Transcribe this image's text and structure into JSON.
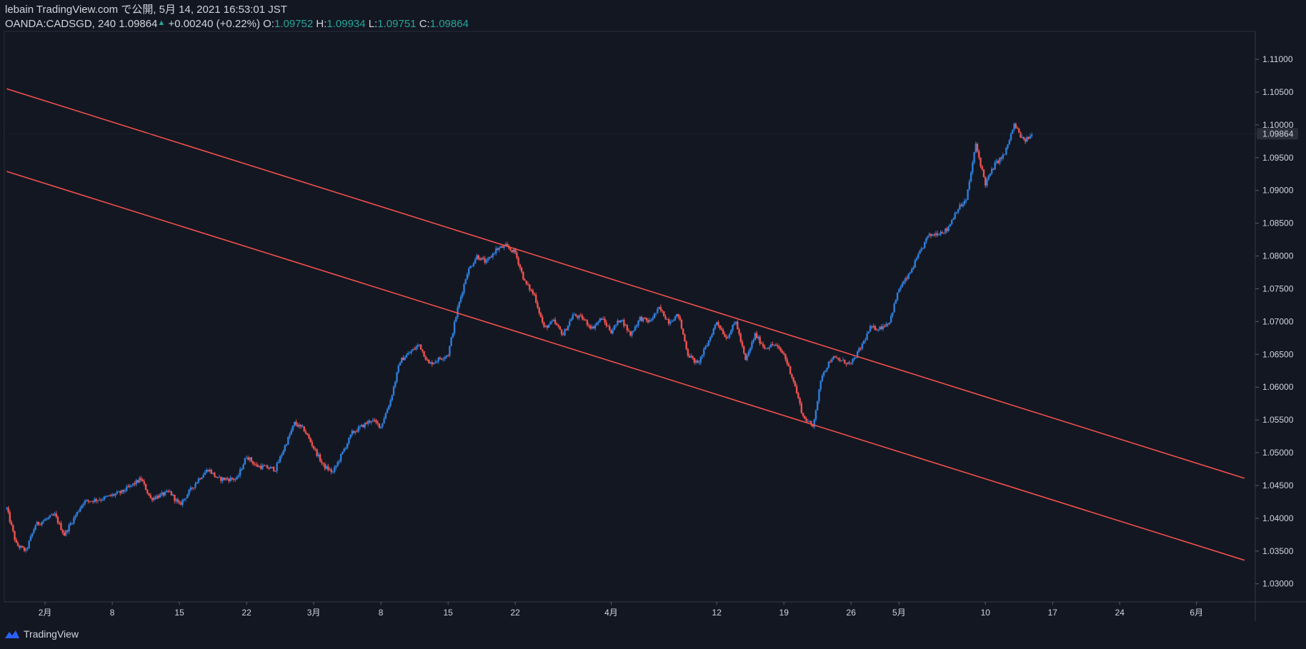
{
  "header": {
    "line1": "lebain TradingView.com で公開, 5月 14, 2021 16:53:01 JST",
    "symbol": "OANDA:CADSGD, 240",
    "last": "1.09864",
    "change": "+0.00240 (+0.22%)",
    "o_label": "O:",
    "o_value": "1.09752",
    "h_label": "H:",
    "h_value": "1.09934",
    "l_label": "L:",
    "l_value": "1.09751",
    "c_label": "C:",
    "c_value": "1.09864"
  },
  "footer": {
    "brand": "TradingView",
    "logo_icon": "tradingview-logo-icon"
  },
  "colors": {
    "background": "#131722",
    "up": "#2f7fdc",
    "down": "#ef5350",
    "trendline": "#f0504a",
    "grid": "#2a2e39",
    "text": "#d1d4dc"
  },
  "chart_data": {
    "type": "candlestick",
    "title": "",
    "ylim": [
      1.02725,
      1.11425
    ],
    "y_ticks": [
      "1.11000",
      "1.10500",
      "1.10000",
      "1.09500",
      "1.09000",
      "1.08500",
      "1.08000",
      "1.07500",
      "1.07000",
      "1.06500",
      "1.06000",
      "1.05500",
      "1.05000",
      "1.04500",
      "1.04000",
      "1.03500",
      "1.03000"
    ],
    "last_price_label": "1.09864",
    "x_ticks": [
      "2月",
      "8",
      "15",
      "22",
      "3月",
      "8",
      "15",
      "22",
      "4月",
      "12",
      "19",
      "26",
      "5月",
      "10",
      "17",
      "24",
      "6月"
    ],
    "price_path": [
      [
        "2021-01-28",
        1.0415
      ],
      [
        "2021-01-29",
        1.036
      ],
      [
        "2021-01-30",
        1.035
      ],
      [
        "2021-01-31",
        1.039
      ],
      [
        "2021-02-02",
        1.0405
      ],
      [
        "2021-02-03",
        1.0375
      ],
      [
        "2021-02-05",
        1.0425
      ],
      [
        "2021-02-07",
        1.043
      ],
      [
        "2021-02-09",
        1.044
      ],
      [
        "2021-02-11",
        1.046
      ],
      [
        "2021-02-12",
        1.043
      ],
      [
        "2021-02-14",
        1.044
      ],
      [
        "2021-02-15",
        1.042
      ],
      [
        "2021-02-17",
        1.046
      ],
      [
        "2021-02-18",
        1.0475
      ],
      [
        "2021-02-19",
        1.046
      ],
      [
        "2021-02-21",
        1.046
      ],
      [
        "2021-02-22",
        1.0495
      ],
      [
        "2021-02-23",
        1.048
      ],
      [
        "2021-02-25",
        1.0475
      ],
      [
        "2021-02-26",
        1.051
      ],
      [
        "2021-02-27",
        1.0545
      ],
      [
        "2021-02-28",
        1.0535
      ],
      [
        "2021-03-02",
        1.048
      ],
      [
        "2021-03-03",
        1.047
      ],
      [
        "2021-03-05",
        1.053
      ],
      [
        "2021-03-07",
        1.055
      ],
      [
        "2021-03-08",
        1.054
      ],
      [
        "2021-03-09",
        1.058
      ],
      [
        "2021-03-10",
        1.064
      ],
      [
        "2021-03-12",
        1.0665
      ],
      [
        "2021-03-13",
        1.0635
      ],
      [
        "2021-03-15",
        1.065
      ],
      [
        "2021-03-16",
        1.072
      ],
      [
        "2021-03-17",
        1.0775
      ],
      [
        "2021-03-18",
        1.08
      ],
      [
        "2021-03-19",
        1.079
      ],
      [
        "2021-03-20",
        1.081
      ],
      [
        "2021-03-21",
        1.0815
      ],
      [
        "2021-03-22",
        1.0805
      ],
      [
        "2021-03-23",
        1.076
      ],
      [
        "2021-03-24",
        1.074
      ],
      [
        "2021-03-25",
        1.069
      ],
      [
        "2021-03-26",
        1.07
      ],
      [
        "2021-03-27",
        1.068
      ],
      [
        "2021-03-28",
        1.071
      ],
      [
        "2021-03-29",
        1.0705
      ],
      [
        "2021-03-30",
        1.069
      ],
      [
        "2021-03-31",
        1.0705
      ],
      [
        "2021-04-01",
        1.0685
      ],
      [
        "2021-04-02",
        1.0705
      ],
      [
        "2021-04-03",
        1.068
      ],
      [
        "2021-04-04",
        1.0705
      ],
      [
        "2021-04-05",
        1.07
      ],
      [
        "2021-04-06",
        1.072
      ],
      [
        "2021-04-07",
        1.07
      ],
      [
        "2021-04-08",
        1.071
      ],
      [
        "2021-04-09",
        1.065
      ],
      [
        "2021-04-10",
        1.0635
      ],
      [
        "2021-04-11",
        1.0665
      ],
      [
        "2021-04-12",
        1.07
      ],
      [
        "2021-04-13",
        1.0675
      ],
      [
        "2021-04-14",
        1.07
      ],
      [
        "2021-04-15",
        1.064
      ],
      [
        "2021-04-16",
        1.068
      ],
      [
        "2021-04-17",
        1.066
      ],
      [
        "2021-04-18",
        1.0665
      ],
      [
        "2021-04-19",
        1.065
      ],
      [
        "2021-04-20",
        1.061
      ],
      [
        "2021-04-21",
        1.0555
      ],
      [
        "2021-04-22",
        1.054
      ],
      [
        "2021-04-23",
        1.062
      ],
      [
        "2021-04-24",
        1.0645
      ],
      [
        "2021-04-25",
        1.064
      ],
      [
        "2021-04-26",
        1.0635
      ],
      [
        "2021-04-27",
        1.066
      ],
      [
        "2021-04-28",
        1.069
      ],
      [
        "2021-04-29",
        1.069
      ],
      [
        "2021-04-30",
        1.07
      ],
      [
        "2021-05-01",
        1.075
      ],
      [
        "2021-05-02",
        1.077
      ],
      [
        "2021-05-03",
        1.08
      ],
      [
        "2021-05-04",
        1.083
      ],
      [
        "2021-05-05",
        1.0835
      ],
      [
        "2021-05-06",
        1.084
      ],
      [
        "2021-05-07",
        1.087
      ],
      [
        "2021-05-08",
        1.0885
      ],
      [
        "2021-05-09",
        1.097
      ],
      [
        "2021-05-10",
        1.091
      ],
      [
        "2021-05-11",
        1.094
      ],
      [
        "2021-05-12",
        1.0955
      ],
      [
        "2021-05-13",
        1.1
      ],
      [
        "2021-05-14",
        1.0975
      ],
      [
        "2021-05-15",
        1.0986
      ]
    ],
    "trendlines": [
      {
        "from": [
          "2021-01-28",
          1.1055
        ],
        "to": [
          "2021-06-06",
          1.0461
        ]
      },
      {
        "from": [
          "2021-01-28",
          1.0929
        ],
        "to": [
          "2021-06-06",
          1.0336
        ]
      }
    ]
  }
}
